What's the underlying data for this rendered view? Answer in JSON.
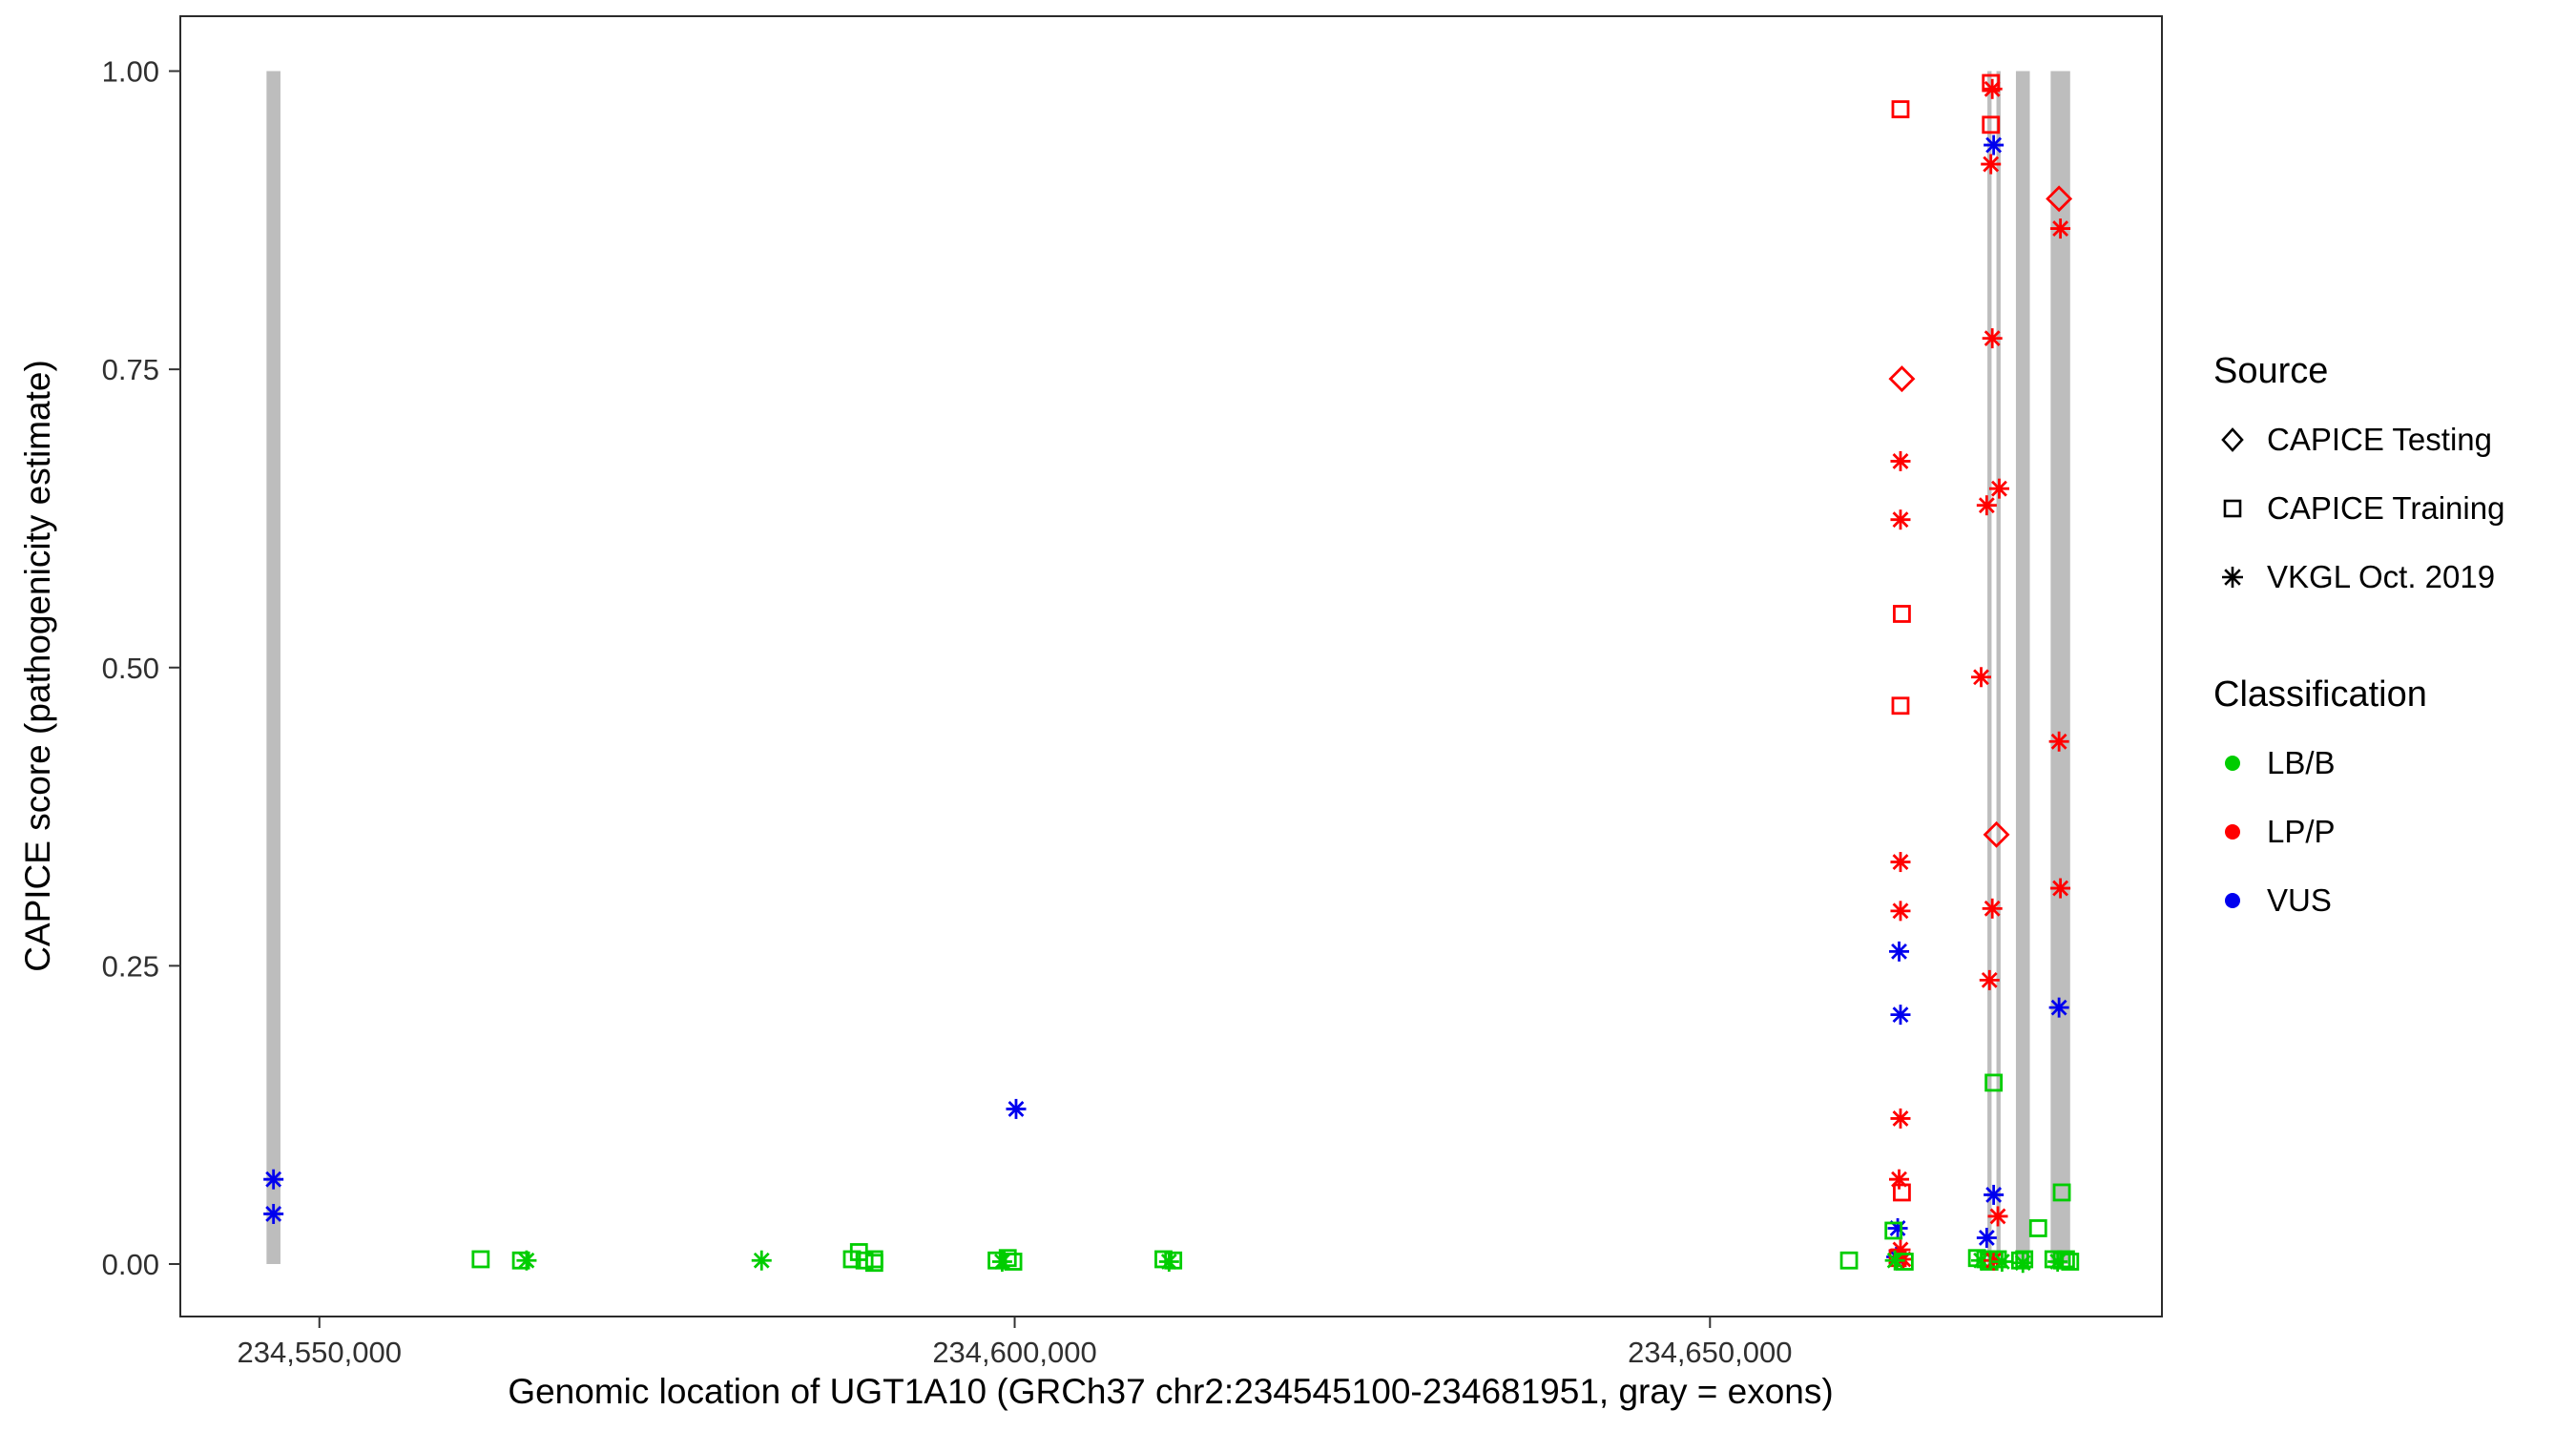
{
  "chart_data": {
    "type": "scatter",
    "title": "",
    "xlabel": "Genomic location of UGT1A10 (GRCh37 chr2:234545100-234681951, gray = exons)",
    "ylabel": "CAPICE score (pathogenicity estimate)",
    "x_range": [
      234540000,
      234682500
    ],
    "y_range": [
      -0.044,
      1.046
    ],
    "grid": false,
    "legend_position": "right",
    "x_ticks": [
      {
        "value": 234550000,
        "label": "234,550,000"
      },
      {
        "value": 234600000,
        "label": "234,600,000"
      },
      {
        "value": 234650000,
        "label": "234,650,000"
      }
    ],
    "y_ticks": [
      {
        "value": 0.0,
        "label": "0.00"
      },
      {
        "value": 0.25,
        "label": "0.25"
      },
      {
        "value": 0.5,
        "label": "0.50"
      },
      {
        "value": 0.75,
        "label": "0.75"
      },
      {
        "value": 1.0,
        "label": "1.00"
      }
    ],
    "exon_color": "#BDBDBD",
    "exons": [
      {
        "start": 234546200,
        "end": 234547200
      },
      {
        "start": 234669950,
        "end": 234670250
      },
      {
        "start": 234670600,
        "end": 234670900
      },
      {
        "start": 234672000,
        "end": 234673000
      },
      {
        "start": 234674500,
        "end": 234675900
      }
    ],
    "class_colors": {
      "LB/B": "#00CD00",
      "LP/P": "#FF0000",
      "VUS": "#0000EE"
    },
    "source_marker_map": {
      "diamond": "CAPICE Testing",
      "square": "CAPICE Training",
      "asterisk": "VKGL Oct. 2019"
    },
    "points_format": [
      "genomic_position",
      "capice_score",
      "classification",
      "marker"
    ],
    "points": [
      [
        234546700,
        0.071,
        "VUS",
        "asterisk"
      ],
      [
        234546700,
        0.042,
        "VUS",
        "asterisk"
      ],
      [
        234561600,
        0.004,
        "LB/B",
        "square"
      ],
      [
        234564500,
        0.003,
        "LB/B",
        "square"
      ],
      [
        234564900,
        0.003,
        "LB/B",
        "asterisk"
      ],
      [
        234581800,
        0.003,
        "LB/B",
        "asterisk"
      ],
      [
        234588300,
        0.004,
        "LB/B",
        "square"
      ],
      [
        234588800,
        0.01,
        "LB/B",
        "square"
      ],
      [
        234589200,
        0.003,
        "LB/B",
        "square"
      ],
      [
        234589900,
        0.004,
        "LB/B",
        "square"
      ],
      [
        234589900,
        0.001,
        "LB/B",
        "square"
      ],
      [
        234598700,
        0.003,
        "LB/B",
        "square"
      ],
      [
        234599100,
        0.002,
        "LB/B",
        "asterisk"
      ],
      [
        234599500,
        0.005,
        "LB/B",
        "square"
      ],
      [
        234599900,
        0.002,
        "LB/B",
        "square"
      ],
      [
        234600100,
        0.13,
        "VUS",
        "asterisk"
      ],
      [
        234610700,
        0.004,
        "LB/B",
        "square"
      ],
      [
        234611100,
        0.002,
        "LB/B",
        "asterisk"
      ],
      [
        234611400,
        0.003,
        "LB/B",
        "square"
      ],
      [
        234660000,
        0.003,
        "LB/B",
        "square"
      ],
      [
        234663700,
        0.968,
        "LP/P",
        "square"
      ],
      [
        234663800,
        0.742,
        "LP/P",
        "diamond"
      ],
      [
        234663700,
        0.673,
        "LP/P",
        "asterisk"
      ],
      [
        234663700,
        0.624,
        "LP/P",
        "asterisk"
      ],
      [
        234663800,
        0.545,
        "LP/P",
        "square"
      ],
      [
        234663700,
        0.468,
        "LP/P",
        "square"
      ],
      [
        234663700,
        0.337,
        "LP/P",
        "asterisk"
      ],
      [
        234663700,
        0.296,
        "LP/P",
        "asterisk"
      ],
      [
        234663600,
        0.262,
        "VUS",
        "asterisk"
      ],
      [
        234663700,
        0.209,
        "VUS",
        "asterisk"
      ],
      [
        234663700,
        0.122,
        "LP/P",
        "asterisk"
      ],
      [
        234663600,
        0.071,
        "LP/P",
        "asterisk"
      ],
      [
        234663800,
        0.06,
        "LP/P",
        "square"
      ],
      [
        234663500,
        0.03,
        "VUS",
        "asterisk"
      ],
      [
        234663200,
        0.028,
        "LB/B",
        "square"
      ],
      [
        234663400,
        0.006,
        "VUS",
        "asterisk"
      ],
      [
        234663700,
        0.012,
        "LP/P",
        "asterisk"
      ],
      [
        234663500,
        0.005,
        "LP/P",
        "square"
      ],
      [
        234663900,
        0.004,
        "LP/P",
        "asterisk"
      ],
      [
        234663300,
        0.003,
        "LB/B",
        "asterisk"
      ],
      [
        234664000,
        0.002,
        "LB/B",
        "square"
      ],
      [
        234670200,
        0.99,
        "LP/P",
        "square"
      ],
      [
        234670300,
        0.985,
        "LP/P",
        "asterisk"
      ],
      [
        234670200,
        0.955,
        "LP/P",
        "square"
      ],
      [
        234670400,
        0.938,
        "VUS",
        "asterisk"
      ],
      [
        234670200,
        0.922,
        "LP/P",
        "asterisk"
      ],
      [
        234670300,
        0.776,
        "LP/P",
        "asterisk"
      ],
      [
        234670800,
        0.65,
        "LP/P",
        "asterisk"
      ],
      [
        234669900,
        0.636,
        "LP/P",
        "asterisk"
      ],
      [
        234669500,
        0.492,
        "LP/P",
        "asterisk"
      ],
      [
        234670600,
        0.36,
        "LP/P",
        "diamond"
      ],
      [
        234670300,
        0.298,
        "LP/P",
        "asterisk"
      ],
      [
        234670100,
        0.238,
        "LP/P",
        "asterisk"
      ],
      [
        234670400,
        0.152,
        "LB/B",
        "square"
      ],
      [
        234670400,
        0.058,
        "VUS",
        "asterisk"
      ],
      [
        234670700,
        0.04,
        "LP/P",
        "asterisk"
      ],
      [
        234669900,
        0.022,
        "VUS",
        "asterisk"
      ],
      [
        234669200,
        0.005,
        "LB/B",
        "square"
      ],
      [
        234669500,
        0.003,
        "LB/B",
        "asterisk"
      ],
      [
        234669800,
        0.004,
        "LB/B",
        "square"
      ],
      [
        234670100,
        0.002,
        "LB/B",
        "square"
      ],
      [
        234670400,
        0.003,
        "LP/P",
        "asterisk"
      ],
      [
        234670700,
        0.004,
        "LB/B",
        "square"
      ],
      [
        234671000,
        0.002,
        "LB/B",
        "asterisk"
      ],
      [
        234672300,
        0.003,
        "LB/B",
        "square"
      ],
      [
        234672600,
        0.004,
        "LB/B",
        "square"
      ],
      [
        234672500,
        0.001,
        "LB/B",
        "asterisk"
      ],
      [
        234675100,
        0.893,
        "LP/P",
        "diamond"
      ],
      [
        234675200,
        0.868,
        "LP/P",
        "asterisk"
      ],
      [
        234675100,
        0.438,
        "LP/P",
        "asterisk"
      ],
      [
        234675200,
        0.315,
        "LP/P",
        "asterisk"
      ],
      [
        234675100,
        0.215,
        "VUS",
        "asterisk"
      ],
      [
        234675300,
        0.06,
        "LB/B",
        "square"
      ],
      [
        234673600,
        0.03,
        "LB/B",
        "square"
      ],
      [
        234674700,
        0.004,
        "LB/B",
        "square"
      ],
      [
        234675000,
        0.002,
        "LB/B",
        "asterisk"
      ],
      [
        234675300,
        0.003,
        "LB/B",
        "square"
      ],
      [
        234675600,
        0.004,
        "LB/B",
        "square"
      ],
      [
        234675900,
        0.002,
        "LB/B",
        "square"
      ]
    ]
  },
  "legend": {
    "source": {
      "title": "Source",
      "items": [
        {
          "label": "CAPICE Testing",
          "marker": "diamond"
        },
        {
          "label": "CAPICE Training",
          "marker": "square"
        },
        {
          "label": "VKGL Oct. 2019",
          "marker": "asterisk"
        }
      ]
    },
    "classification": {
      "title": "Classification",
      "items": [
        {
          "label": "LB/B",
          "color": "#00CD00"
        },
        {
          "label": "LP/P",
          "color": "#FF0000"
        },
        {
          "label": "VUS",
          "color": "#0000EE"
        }
      ]
    }
  }
}
